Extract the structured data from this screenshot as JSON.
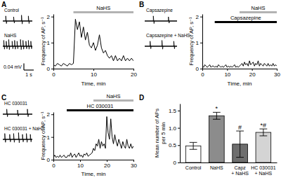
{
  "panel_labels": [
    "A",
    "B",
    "C",
    "D"
  ],
  "chart_data": [
    {
      "type": "spike_trace",
      "xlim": [
        0,
        3
      ],
      "ylim": [
        -0.05,
        0.05
      ],
      "series": [
        {
          "name": "Control",
          "color": "#000000",
          "x": [
            0.3,
            1.1,
            1.9,
            2.6
          ],
          "values": [
            0.03,
            0.025,
            0.035,
            0.03
          ]
        },
        {
          "name": "NaHS",
          "color": "#000000",
          "x": [
            0.1,
            0.35,
            0.6,
            0.95,
            1.2,
            1.45,
            1.8,
            2.05,
            2.35,
            2.6,
            2.85
          ],
          "values": [
            0.035,
            0.03,
            0.04,
            0.03,
            0.035,
            0.03,
            0.04,
            0.035,
            0.03,
            0.035,
            0.03
          ]
        }
      ],
      "scale_bar": {
        "amplitude": 0.04,
        "amplitude_label": "0.04 mV",
        "duration": 1,
        "duration_label": "1 s"
      }
    },
    {
      "type": "line",
      "x_label": "Time, min",
      "y_label": "Frequency of AP, s⁻¹",
      "color": "#000000",
      "xlim": [
        0,
        20
      ],
      "xticks": [
        0,
        10,
        20
      ],
      "ylim": [
        0,
        2.1
      ],
      "yticks": [
        0,
        1,
        2
      ],
      "x": [
        0,
        0.5,
        1,
        1.5,
        2,
        2.5,
        3,
        3.5,
        4,
        4.5,
        5,
        5.5,
        6,
        6.5,
        7,
        7.5,
        8,
        8.5,
        9,
        9.5,
        10,
        10.5,
        11,
        11.5,
        12,
        12.5,
        13,
        13.5,
        14,
        14.5,
        15,
        15.5,
        16,
        16.5,
        17,
        17.5,
        18,
        18.5,
        19,
        19.5,
        20
      ],
      "values": [
        0.15,
        0.1,
        0.2,
        0.15,
        0.1,
        0.2,
        0.15,
        0.1,
        0.2,
        0.15,
        0.2,
        1.9,
        1.5,
        1.8,
        1.2,
        1.6,
        1.1,
        1.4,
        0.9,
        0.8,
        1.0,
        0.7,
        0.9,
        1.3,
        0.8,
        0.6,
        0.7,
        0.5,
        0.4,
        0.5,
        0.3,
        0.5,
        0.3,
        0.4,
        0.3,
        0.5,
        0.3,
        0.4,
        0.3,
        0.4,
        0.3
      ],
      "treatments": [
        {
          "label": "NaHS",
          "start": 5,
          "end": 20,
          "color": "#b3b3b3"
        }
      ]
    },
    {
      "type": "spike_trace",
      "xlim": [
        0,
        3
      ],
      "ylim": [
        -0.05,
        0.05
      ],
      "series": [
        {
          "name": "Capsazepine",
          "color": "#000000",
          "x": [
            0.8,
            2.2
          ],
          "values": [
            0.03,
            0.025
          ]
        },
        {
          "name": "Capsazepine + NaHS",
          "color": "#000000",
          "x": [
            0.5,
            1.6,
            2.7
          ],
          "values": [
            0.03,
            0.035,
            0.03
          ]
        }
      ]
    },
    {
      "type": "line",
      "x_label": "Time, min",
      "y_label": "Frequency of AP, s⁻¹",
      "color": "#000000",
      "xlim": [
        0,
        30
      ],
      "xticks": [
        0,
        10,
        20,
        30
      ],
      "ylim": [
        0,
        2.1
      ],
      "yticks": [
        0,
        1,
        2
      ],
      "x": [
        0,
        0.5,
        1,
        1.5,
        2,
        2.5,
        3,
        3.5,
        4,
        4.5,
        5,
        5.5,
        6,
        6.5,
        7,
        7.5,
        8,
        8.5,
        9,
        9.5,
        10,
        10.5,
        11,
        11.5,
        12,
        12.5,
        13,
        13.5,
        14,
        14.5,
        15,
        15.5,
        16,
        16.5,
        17,
        17.5,
        18,
        18.5,
        19,
        19.5,
        20,
        20.5,
        21,
        21.5,
        22,
        22.5,
        23,
        23.5,
        24,
        24.5,
        25,
        25.5,
        26,
        26.5,
        27,
        27.5,
        28,
        28.5,
        29,
        29.5,
        30
      ],
      "values": [
        0.1,
        0.05,
        0.15,
        0.1,
        0.05,
        0.1,
        0.15,
        0.05,
        0.1,
        0.1,
        0.05,
        0.1,
        0.05,
        0.15,
        0.1,
        0.05,
        0.1,
        0.05,
        0.1,
        0.15,
        0.05,
        0.1,
        0.05,
        0.1,
        0.05,
        0.1,
        0.15,
        0.05,
        0.1,
        0.05,
        0.1,
        0.15,
        0.2,
        0.1,
        0.25,
        0.15,
        0.2,
        0.1,
        0.3,
        0.15,
        0.2,
        0.25,
        0.1,
        0.2,
        0.15,
        0.3,
        0.1,
        0.2,
        0.15,
        0.1,
        0.2,
        0.15,
        0.1,
        0.2,
        0.1,
        0.15,
        0.1,
        0.2,
        0.1,
        0.15,
        0.1
      ],
      "treatments": [
        {
          "label": "NaHS",
          "start": 15,
          "end": 30,
          "color": "#b3b3b3"
        },
        {
          "label": "Capsazepine",
          "start": 5,
          "end": 30,
          "color": "#000000"
        }
      ]
    },
    {
      "type": "spike_trace",
      "xlim": [
        0,
        3
      ],
      "ylim": [
        -0.05,
        0.05
      ],
      "series": [
        {
          "name": "HC 030031",
          "color": "#000000",
          "x": [
            0.4,
            1.5,
            2.5
          ],
          "values": [
            0.03,
            0.025,
            0.03
          ]
        },
        {
          "name": "HC 030031 + NaHS",
          "color": "#000000",
          "x": [
            0.2,
            0.7,
            1.1,
            1.6,
            2.0,
            2.4,
            2.8
          ],
          "values": [
            0.035,
            0.03,
            0.035,
            0.04,
            0.03,
            0.035,
            0.03
          ]
        }
      ]
    },
    {
      "type": "line",
      "x_label": "Time, min",
      "y_label": "Frequency of AP, s⁻¹",
      "color": "#000000",
      "xlim": [
        0,
        30
      ],
      "xticks": [
        0,
        10,
        20,
        30
      ],
      "ylim": [
        0,
        2.1
      ],
      "yticks": [
        0,
        1,
        2
      ],
      "x": [
        0,
        0.5,
        1,
        1.5,
        2,
        2.5,
        3,
        3.5,
        4,
        4.5,
        5,
        5.5,
        6,
        6.5,
        7,
        7.5,
        8,
        8.5,
        9,
        9.5,
        10,
        10.5,
        11,
        11.5,
        12,
        12.5,
        13,
        13.5,
        14,
        14.5,
        15,
        15.5,
        16,
        16.5,
        17,
        17.5,
        18,
        18.5,
        19,
        19.5,
        20,
        20.5,
        21,
        21.5,
        22,
        22.5,
        23,
        23.5,
        24,
        24.5,
        25,
        25.5,
        26,
        26.5,
        27,
        27.5,
        28,
        28.5,
        29,
        29.5,
        30
      ],
      "values": [
        0.1,
        0.2,
        0.1,
        0.15,
        0.1,
        0.2,
        0.1,
        0.15,
        0.2,
        0.1,
        0.1,
        0.2,
        0.15,
        0.3,
        0.1,
        0.2,
        0.25,
        0.1,
        0.2,
        0.3,
        0.15,
        0.2,
        0.1,
        0.25,
        0.2,
        0.3,
        0.15,
        0.2,
        0.25,
        0.3,
        0.5,
        0.4,
        0.7,
        0.6,
        0.9,
        0.5,
        0.8,
        0.6,
        0.7,
        0.5,
        1.9,
        1.2,
        0.9,
        1.8,
        1.0,
        0.7,
        1.1,
        0.8,
        0.6,
        0.9,
        0.7,
        0.5,
        0.8,
        0.6,
        0.5,
        0.9,
        0.6,
        0.5,
        0.7,
        0.5,
        0.6
      ],
      "treatments": [
        {
          "label": "NaHS",
          "start": 15,
          "end": 30,
          "color": "#b3b3b3"
        },
        {
          "label": "HC 030031",
          "start": 5,
          "end": 30,
          "color": "#000000"
        }
      ]
    },
    {
      "type": "bar",
      "y_label": [
        "Mean number of APs",
        "per 5 min"
      ],
      "categories": [
        "Control",
        "NaHS",
        "Capz + NaHS",
        "HC 030031 + NaHS"
      ],
      "values": [
        0.48,
        1.35,
        0.53,
        0.87
      ],
      "errors": [
        0.1,
        0.1,
        0.38,
        0.1
      ],
      "annotations": [
        null,
        "*",
        "#",
        "*#"
      ],
      "colors": [
        "#ffffff",
        "#8c8c8c",
        "#6e6e6e",
        "#d4d4d4"
      ],
      "ylim": [
        0,
        1.7
      ],
      "yticks": [
        0,
        0.5,
        {
          "value": 1.0,
          "label": "1.0"
        },
        1.5
      ]
    }
  ]
}
